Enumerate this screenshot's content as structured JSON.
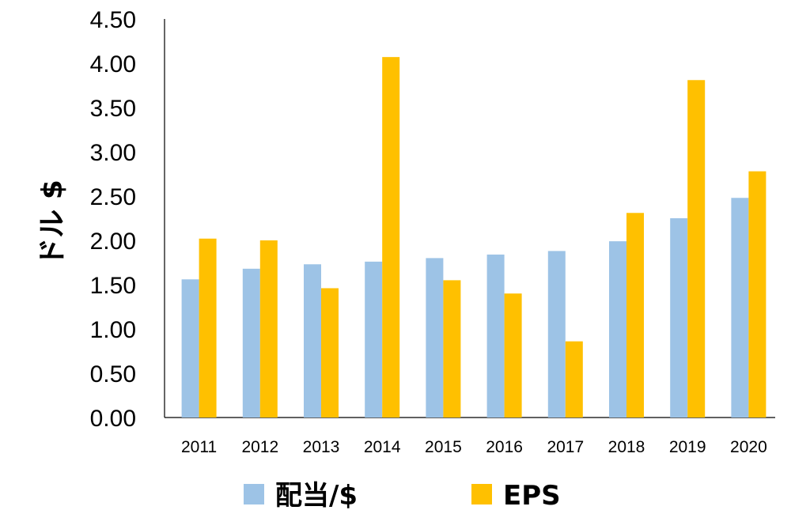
{
  "chart_data": {
    "type": "bar",
    "categories": [
      "2011",
      "2012",
      "2013",
      "2014",
      "2015",
      "2016",
      "2017",
      "2018",
      "2019",
      "2020"
    ],
    "series": [
      {
        "name": "配当/$",
        "color": "#9DC3E6",
        "values": [
          1.56,
          1.68,
          1.73,
          1.76,
          1.8,
          1.84,
          1.88,
          1.99,
          2.25,
          2.48
        ]
      },
      {
        "name": "EPS",
        "color": "#FFC000",
        "values": [
          2.02,
          2.0,
          1.46,
          4.07,
          1.55,
          1.4,
          0.86,
          2.31,
          3.81,
          2.78
        ]
      }
    ],
    "yticks": [
      "0.00",
      "0.50",
      "1.00",
      "1.50",
      "2.00",
      "2.50",
      "3.00",
      "3.50",
      "4.00",
      "4.50"
    ],
    "ylim": [
      0,
      4.5
    ],
    "ylabel": "ドル $",
    "xlabel": "",
    "grid": false,
    "legend_position": "bottom"
  }
}
